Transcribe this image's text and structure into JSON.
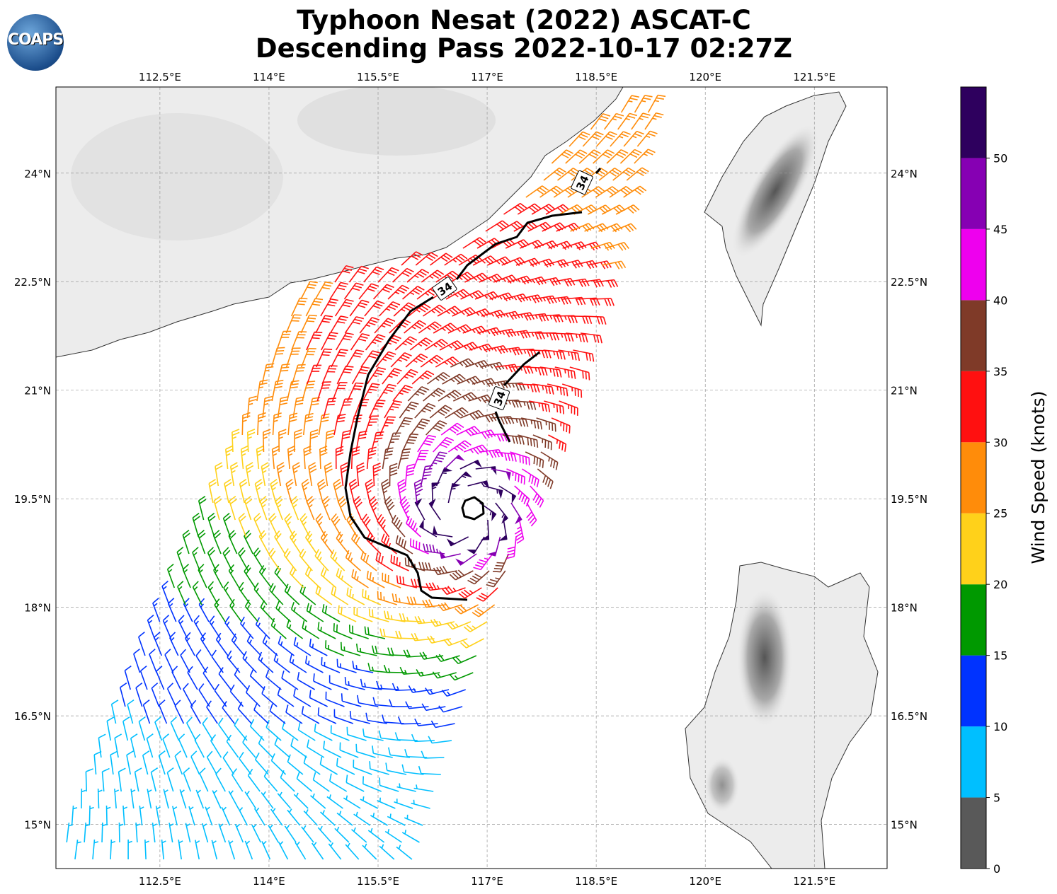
{
  "title_line1": "Typhoon Nesat (2022) ASCAT-C",
  "title_line2": "Descending Pass 2022-10-17 02:27Z",
  "logo_text": "COAPS",
  "map": {
    "lon_range": [
      111.07,
      122.5
    ],
    "lat_range": [
      14.39,
      25.19
    ],
    "lon_ticks": [
      {
        "v": 112.5,
        "label": "112.5°E"
      },
      {
        "v": 114,
        "label": "114°E"
      },
      {
        "v": 115.5,
        "label": "115.5°E"
      },
      {
        "v": 117,
        "label": "117°E"
      },
      {
        "v": 118.5,
        "label": "118.5°E"
      },
      {
        "v": 120,
        "label": "120°E"
      },
      {
        "v": 121.5,
        "label": "121.5°E"
      }
    ],
    "lat_ticks": [
      {
        "v": 24,
        "label": "24°N"
      },
      {
        "v": 22.5,
        "label": "22.5°N"
      },
      {
        "v": 21,
        "label": "21°N"
      },
      {
        "v": 19.5,
        "label": "19.5°N"
      },
      {
        "v": 18,
        "label": "18°N"
      },
      {
        "v": 16.5,
        "label": "16.5°N"
      },
      {
        "v": 15,
        "label": "15°N"
      }
    ],
    "contour_label": "34",
    "storm_center": {
      "lon": 116.7,
      "lat": 19.3
    },
    "max_wind_kt": 52
  },
  "colorbar": {
    "label": "Wind Speed (knots)",
    "bounds": [
      0,
      5,
      10,
      15,
      20,
      25,
      30,
      35,
      40,
      45,
      50,
      55
    ],
    "tick_labels": [
      "0",
      "5",
      "10",
      "15",
      "20",
      "25",
      "30",
      "35",
      "40",
      "45",
      "50"
    ],
    "colors": [
      "#595959",
      "#00bfff",
      "#0033ff",
      "#009900",
      "#ffd11a",
      "#ff8c0a",
      "#ff1010",
      "#7f3a28",
      "#ee00ee",
      "#8600b3",
      "#2e005e"
    ]
  }
}
